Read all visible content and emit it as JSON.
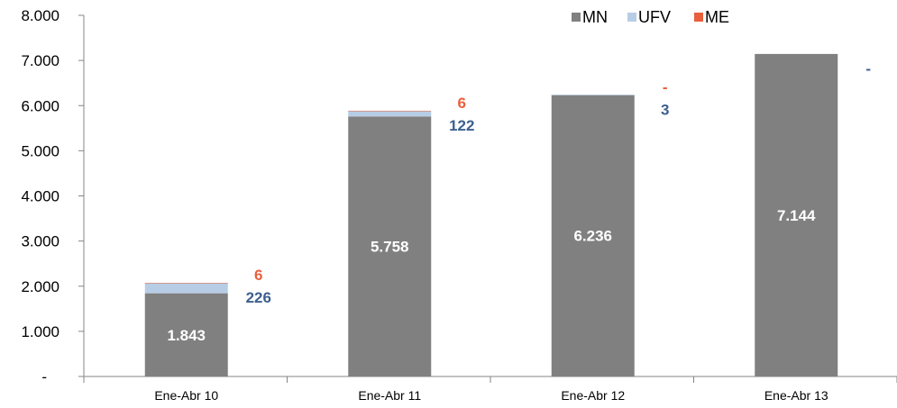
{
  "chart_data": {
    "type": "bar",
    "stacked": true,
    "title": "",
    "xlabel": "",
    "ylabel": "",
    "categories": [
      "Ene-Abr 10",
      "Ene-Abr 11",
      "Ene-Abr 12",
      "Ene-Abr 13"
    ],
    "series": [
      {
        "name": "MN",
        "color": "#808080",
        "values": [
          1843,
          5758,
          6236,
          7144
        ],
        "labels": [
          "1.843",
          "5.758",
          "6.236",
          "7.144"
        ]
      },
      {
        "name": "UFV",
        "color": "#b7cde5",
        "values": [
          226,
          122,
          3,
          0
        ],
        "labels": [
          "226",
          "122",
          "3",
          "-"
        ],
        "label_color": "#3c5f8e"
      },
      {
        "name": "ME",
        "color": "#e8603c",
        "values": [
          6,
          6,
          0,
          0
        ],
        "labels": [
          "6",
          "6",
          "-",
          ""
        ],
        "label_color": "#e8603c"
      }
    ],
    "ylim": [
      0,
      8000
    ],
    "yticks": [
      {
        "value": 0,
        "label": "-"
      },
      {
        "value": 1000,
        "label": "1.000"
      },
      {
        "value": 2000,
        "label": "2.000"
      },
      {
        "value": 3000,
        "label": "3.000"
      },
      {
        "value": 4000,
        "label": "4.000"
      },
      {
        "value": 5000,
        "label": "5.000"
      },
      {
        "value": 6000,
        "label": "6.000"
      },
      {
        "value": 7000,
        "label": "7.000"
      },
      {
        "value": 8000,
        "label": "8.000"
      }
    ],
    "grid": false,
    "legend": {
      "position": "top-right",
      "entries": [
        "MN",
        "UFV",
        "ME"
      ]
    }
  }
}
